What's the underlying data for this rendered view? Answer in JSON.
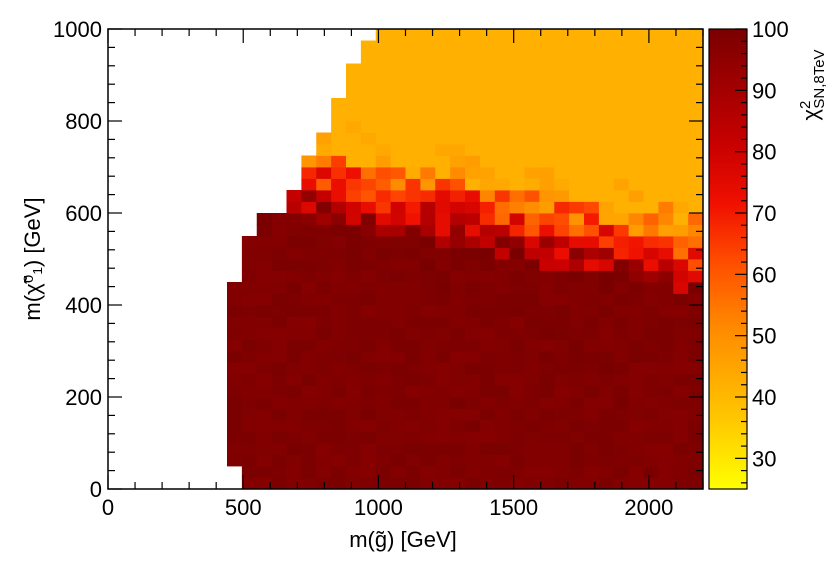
{
  "chart_data": {
    "type": "heatmap",
    "xlabel": "m(g̃) [GeV]",
    "ylabel": "m(χ̃⁰₁) [GeV]",
    "zlabel": "χ²_SN,8TeV",
    "xlim": [
      0,
      2200
    ],
    "ylim": [
      0,
      1000
    ],
    "zlim": [
      25,
      100
    ],
    "x_ticks": [
      "0",
      "500",
      "1000",
      "1500",
      "2000"
    ],
    "y_ticks": [
      "0",
      "200",
      "400",
      "600",
      "800",
      "1000"
    ],
    "z_ticks": [
      "30",
      "40",
      "50",
      "60",
      "70",
      "80",
      "90",
      "100"
    ],
    "bin_width_x": 55,
    "bin_width_y": 25,
    "boundary": [
      {
        "x_from": 440,
        "x_to": 495,
        "y_min": 50,
        "y_max": 450
      },
      {
        "x_from": 495,
        "x_to": 550,
        "y_min": 0,
        "y_max": 550
      },
      {
        "x_from": 550,
        "x_to": 605,
        "y_min": 0,
        "y_max": 600
      },
      {
        "x_from": 605,
        "x_to": 660,
        "y_min": 0,
        "y_max": 600
      },
      {
        "x_from": 660,
        "x_to": 715,
        "y_min": 0,
        "y_max": 650
      },
      {
        "x_from": 715,
        "x_to": 770,
        "y_min": 0,
        "y_max": 725
      },
      {
        "x_from": 770,
        "x_to": 825,
        "y_min": 0,
        "y_max": 775
      },
      {
        "x_from": 825,
        "x_to": 880,
        "y_min": 0,
        "y_max": 850
      },
      {
        "x_from": 880,
        "x_to": 935,
        "y_min": 0,
        "y_max": 925
      },
      {
        "x_from": 935,
        "x_to": 990,
        "y_min": 0,
        "y_max": 975
      },
      {
        "x_from": 990,
        "x_to": 2200,
        "y_min": 0,
        "y_max": 1000
      }
    ],
    "z_trend": "near 100 (dark red) for low m(χ̃⁰₁); decreasing toward ~45 (orange) at high m(χ̃⁰₁) and high m(g̃)"
  }
}
